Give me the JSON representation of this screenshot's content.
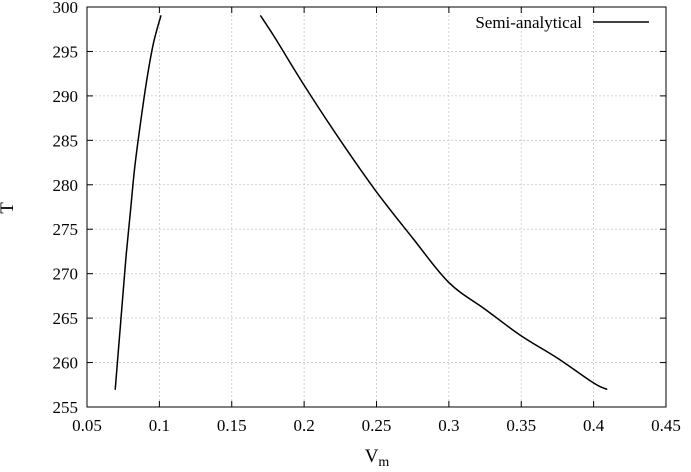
{
  "chart_data": {
    "type": "line",
    "title": "",
    "xlabel_main": "V",
    "xlabel_sub": "m",
    "ylabel": "T",
    "xlim": [
      0.05,
      0.45
    ],
    "ylim": [
      255,
      300
    ],
    "x_ticks": [
      0.05,
      0.1,
      0.15,
      0.2,
      0.25,
      0.3,
      0.35,
      0.4,
      0.45
    ],
    "x_tick_labels": [
      "0.05",
      "0.1",
      "0.15",
      "0.2",
      "0.25",
      "0.3",
      "0.35",
      "0.4",
      "0.45"
    ],
    "y_ticks": [
      255,
      260,
      265,
      270,
      275,
      280,
      285,
      290,
      295,
      300
    ],
    "y_tick_labels": [
      "255",
      "260",
      "265",
      "270",
      "275",
      "280",
      "285",
      "290",
      "295",
      "300"
    ],
    "grid": true,
    "legend_position": "top-right",
    "series": [
      {
        "name": "Semi-analytical",
        "color": "#000000",
        "segments": [
          [
            [
              0.0695,
              257
            ],
            [
              0.072,
              262
            ],
            [
              0.0745,
              267
            ],
            [
              0.077,
              272
            ],
            [
              0.08,
              277
            ],
            [
              0.083,
              282
            ],
            [
              0.087,
              287
            ],
            [
              0.0915,
              292
            ],
            [
              0.096,
              296
            ],
            [
              0.101,
              299
            ]
          ],
          [
            [
              0.17,
              299
            ],
            [
              0.18,
              296.5
            ],
            [
              0.2,
              291.2
            ],
            [
              0.225,
              285.0
            ],
            [
              0.25,
              279.2
            ],
            [
              0.275,
              274.0
            ],
            [
              0.3,
              269.0
            ],
            [
              0.325,
              266.0
            ],
            [
              0.35,
              263.0
            ],
            [
              0.375,
              260.5
            ],
            [
              0.4,
              257.7
            ],
            [
              0.409,
              257
            ]
          ]
        ]
      }
    ]
  }
}
